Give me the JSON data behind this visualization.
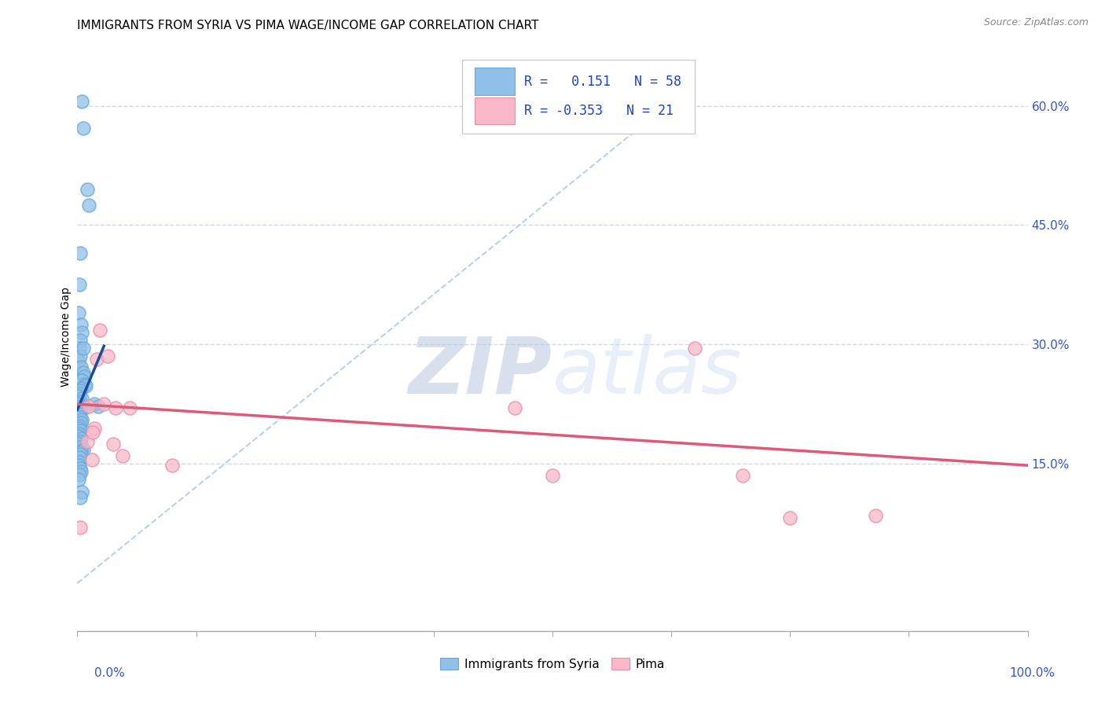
{
  "title": "IMMIGRANTS FROM SYRIA VS PIMA WAGE/INCOME GAP CORRELATION CHART",
  "source": "Source: ZipAtlas.com",
  "ylabel": "Wage/Income Gap",
  "y_ticks": [
    0.15,
    0.3,
    0.45,
    0.6
  ],
  "y_tick_labels": [
    "15.0%",
    "30.0%",
    "45.0%",
    "60.0%"
  ],
  "xlim": [
    0.0,
    1.0
  ],
  "ylim": [
    -0.06,
    0.68
  ],
  "watermark_zip": "ZIP",
  "watermark_atlas": "atlas",
  "blue_scatter_x": [
    0.005,
    0.006,
    0.01,
    0.012,
    0.003,
    0.002,
    0.001,
    0.004,
    0.005,
    0.003,
    0.002,
    0.001,
    0.003,
    0.004,
    0.006,
    0.007,
    0.005,
    0.008,
    0.009,
    0.004,
    0.003,
    0.002,
    0.001,
    0.005,
    0.003,
    0.002,
    0.004,
    0.006,
    0.007,
    0.003,
    0.002,
    0.001,
    0.003,
    0.005,
    0.004,
    0.002,
    0.001,
    0.003,
    0.002,
    0.001,
    0.004,
    0.003,
    0.002,
    0.005,
    0.006,
    0.004,
    0.003,
    0.002,
    0.018,
    0.022,
    0.002,
    0.001,
    0.003,
    0.004,
    0.002,
    0.001,
    0.005,
    0.003
  ],
  "blue_scatter_y": [
    0.605,
    0.572,
    0.495,
    0.475,
    0.415,
    0.375,
    0.34,
    0.325,
    0.315,
    0.305,
    0.295,
    0.28,
    0.285,
    0.272,
    0.265,
    0.26,
    0.255,
    0.25,
    0.248,
    0.245,
    0.242,
    0.238,
    0.235,
    0.232,
    0.228,
    0.225,
    0.222,
    0.295,
    0.22,
    0.218,
    0.215,
    0.212,
    0.208,
    0.205,
    0.202,
    0.198,
    0.195,
    0.192,
    0.188,
    0.185,
    0.182,
    0.178,
    0.175,
    0.172,
    0.168,
    0.165,
    0.162,
    0.158,
    0.225,
    0.222,
    0.152,
    0.148,
    0.144,
    0.14,
    0.136,
    0.13,
    0.115,
    0.108
  ],
  "pink_scatter_x": [
    0.003,
    0.012,
    0.024,
    0.02,
    0.04,
    0.055,
    0.01,
    0.028,
    0.018,
    0.032,
    0.048,
    0.016,
    0.038,
    0.015,
    0.1,
    0.46,
    0.5,
    0.84,
    0.65,
    0.7,
    0.75
  ],
  "pink_scatter_y": [
    0.07,
    0.222,
    0.318,
    0.282,
    0.22,
    0.22,
    0.178,
    0.225,
    0.195,
    0.285,
    0.16,
    0.19,
    0.175,
    0.155,
    0.148,
    0.22,
    0.135,
    0.085,
    0.295,
    0.135,
    0.082
  ],
  "blue_line_x": [
    0.0,
    0.028
  ],
  "blue_line_y": [
    0.218,
    0.298
  ],
  "pink_line_x": [
    0.0,
    1.0
  ],
  "pink_line_y": [
    0.225,
    0.148
  ],
  "dashed_line_x": [
    0.0,
    0.62
  ],
  "dashed_line_y": [
    0.0,
    0.6
  ],
  "blue_color": "#90c0e8",
  "blue_edge_color": "#6aa8d8",
  "blue_line_color": "#1a4a9a",
  "pink_color": "#f8b8c8",
  "pink_edge_color": "#e890a8",
  "pink_line_color": "#e05878",
  "dashed_color": "#b8d0f0",
  "grid_color": "#d0d8e8",
  "background_color": "#ffffff",
  "title_fontsize": 11,
  "axis_label_fontsize": 10,
  "tick_fontsize": 11,
  "legend_fontsize": 12
}
